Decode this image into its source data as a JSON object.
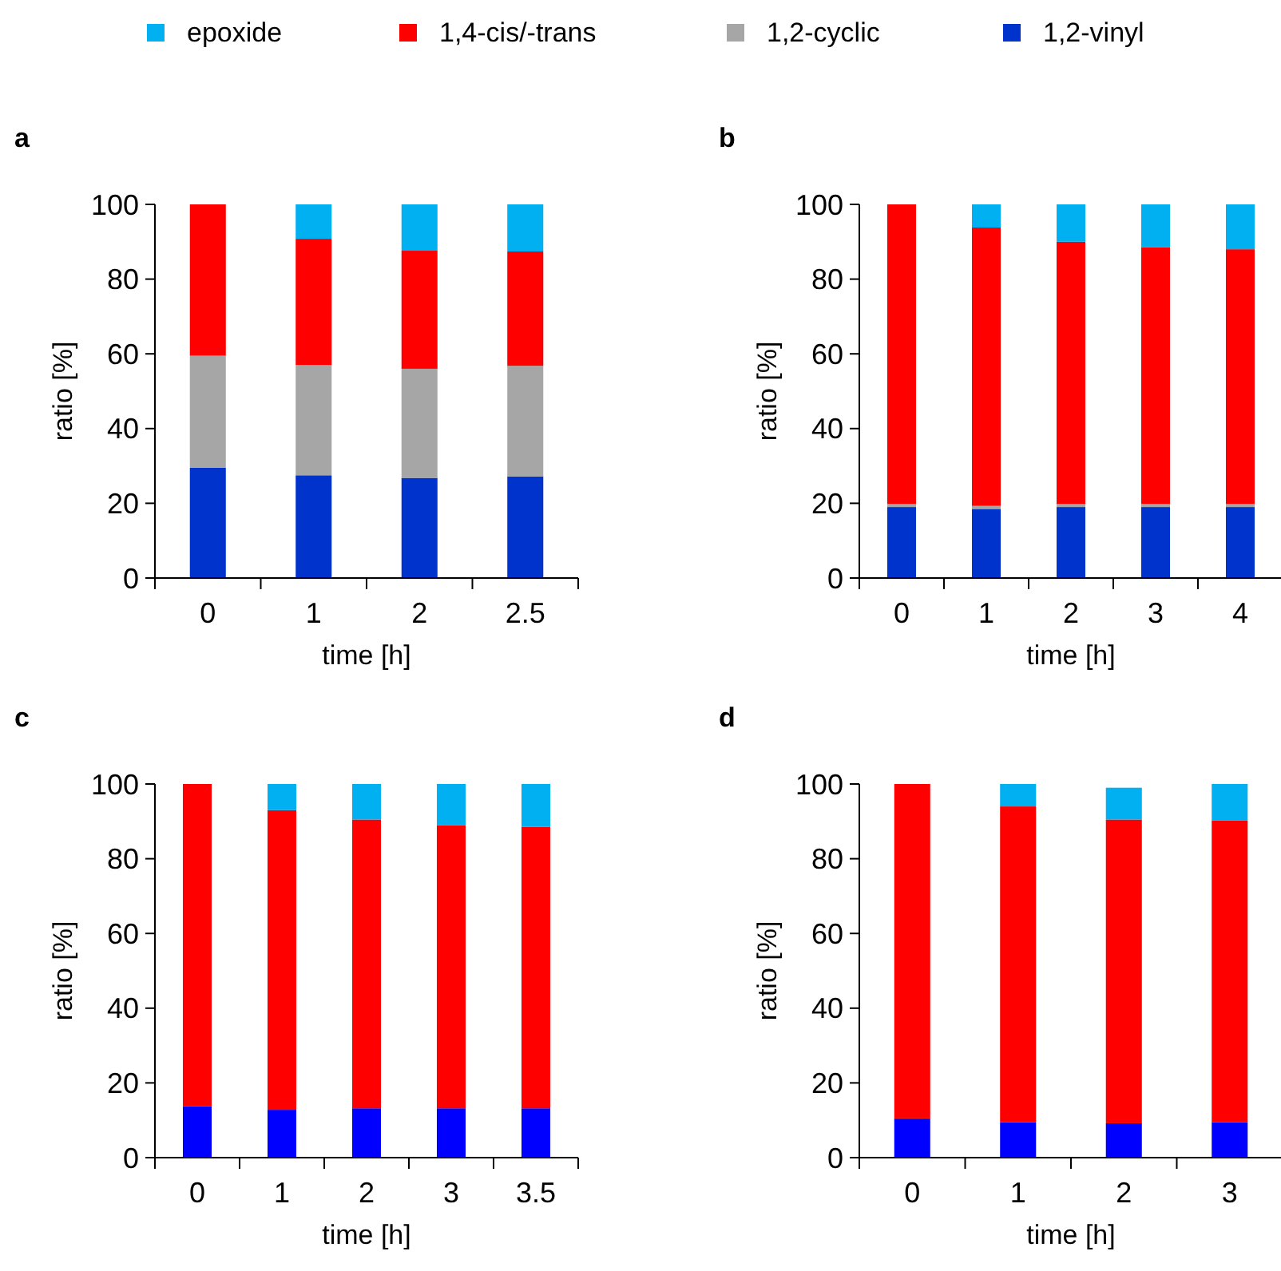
{
  "chart_data": [
    {
      "type": "bar",
      "title": "a",
      "stacked": true,
      "legend": "top",
      "categories": [
        "0",
        "1",
        "2",
        "2.5"
      ],
      "xlabel": "time [h]",
      "ylabel": "ratio [%]",
      "ylim": [
        0,
        100
      ],
      "yticks": [
        0,
        20,
        40,
        60,
        80,
        100
      ],
      "series": [
        {
          "name": "1,2-vinyl",
          "color": "#0033cc",
          "values": [
            29.5,
            27.5,
            26.8,
            27.2
          ]
        },
        {
          "name": "1,2-cyclic",
          "color": "#a6a6a6",
          "values": [
            30,
            29.5,
            29.2,
            29.6
          ]
        },
        {
          "name": "1,4-cis/-trans",
          "color": "#ff0000",
          "values": [
            40.5,
            33.8,
            31.6,
            30.6
          ]
        },
        {
          "name": "epoxide",
          "color": "#00b0f0",
          "values": [
            0,
            9.2,
            12.4,
            12.6
          ]
        }
      ]
    },
    {
      "type": "bar",
      "title": "b",
      "stacked": true,
      "categories": [
        "0",
        "1",
        "2",
        "3",
        "4"
      ],
      "xlabel": "time [h]",
      "ylabel": "ratio [%]",
      "ylim": [
        0,
        100
      ],
      "yticks": [
        0,
        20,
        40,
        60,
        80,
        100
      ],
      "series": [
        {
          "name": "1,2-vinyl",
          "color": "#0033cc",
          "values": [
            19,
            18.5,
            19,
            19,
            19
          ]
        },
        {
          "name": "1,2-cyclic",
          "color": "#a6a6a6",
          "values": [
            0.8,
            0.8,
            0.8,
            0.8,
            0.8
          ]
        },
        {
          "name": "1,4-cis/-trans",
          "color": "#ff0000",
          "values": [
            80.2,
            74.5,
            70.2,
            68.7,
            68.2
          ]
        },
        {
          "name": "epoxide",
          "color": "#00b0f0",
          "values": [
            0,
            6.2,
            10,
            11.5,
            12
          ]
        }
      ]
    },
    {
      "type": "bar",
      "title": "c",
      "stacked": true,
      "categories": [
        "0",
        "1",
        "2",
        "3",
        "3.5"
      ],
      "xlabel": "time [h]",
      "ylabel": "ratio [%]",
      "ylim": [
        0,
        100
      ],
      "yticks": [
        0,
        20,
        40,
        60,
        80,
        100
      ],
      "series": [
        {
          "color": "#0000ff",
          "values": [
            13.8,
            12.8,
            13.2,
            13.2,
            13.2
          ]
        },
        {
          "color": "#ff0000",
          "values": [
            86.2,
            80.2,
            77.3,
            75.8,
            75.3
          ]
        },
        {
          "color": "#00b0f0",
          "values": [
            0,
            7,
            9.5,
            11,
            11.5
          ]
        }
      ]
    },
    {
      "type": "bar",
      "title": "d",
      "stacked": true,
      "categories": [
        "0",
        "1",
        "2",
        "3"
      ],
      "xlabel": "time [h]",
      "ylabel": "ratio [%]",
      "ylim": [
        0,
        100
      ],
      "yticks": [
        0,
        20,
        40,
        60,
        80,
        100
      ],
      "series": [
        {
          "color": "#0000ff",
          "values": [
            10.5,
            9.5,
            9.2,
            9.5
          ]
        },
        {
          "color": "#ff0000",
          "values": [
            89.5,
            84.5,
            81.3,
            80.7
          ]
        },
        {
          "color": "#00b0f0",
          "values": [
            0,
            6,
            8.5,
            9.8
          ]
        }
      ]
    }
  ]
}
